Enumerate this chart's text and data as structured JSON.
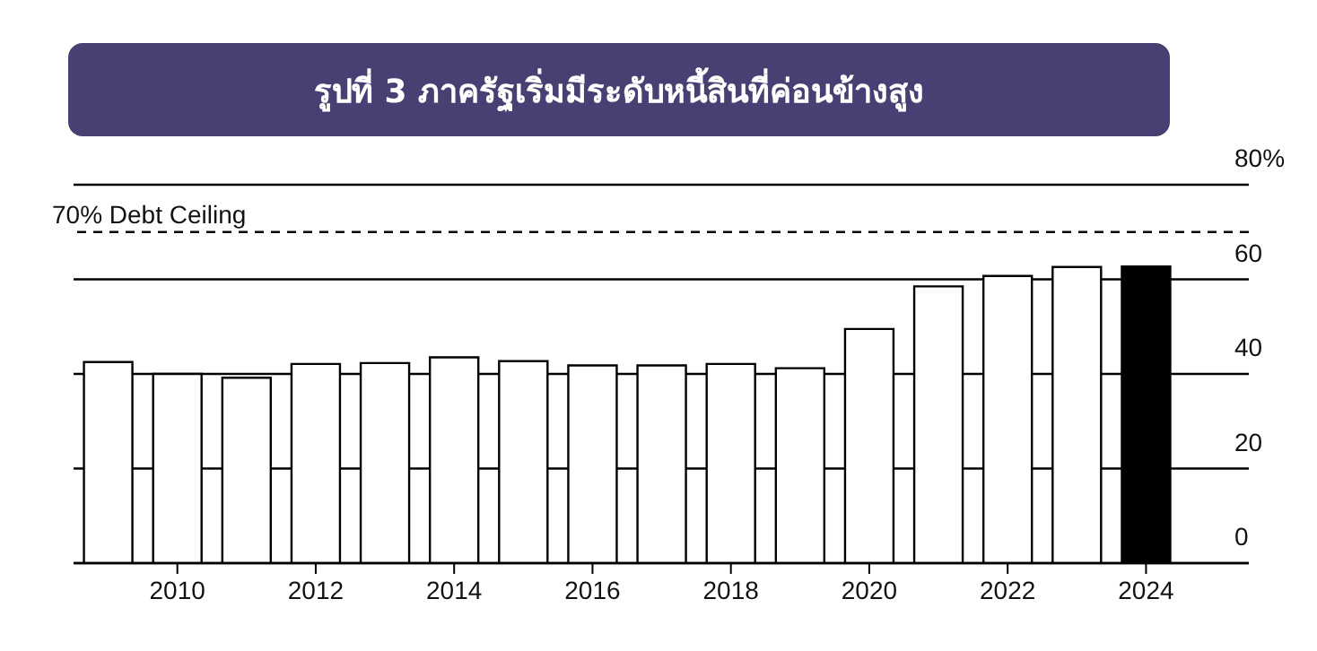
{
  "chart_data": {
    "type": "bar",
    "title": "รูปที่ 3 ภาครัฐเริ่มมีระดับหนี้สินที่ค่อนข้างสูง",
    "categories": [
      null,
      "2010",
      null,
      "2012",
      null,
      "2014",
      null,
      "2016",
      null,
      "2018",
      null,
      "2020",
      null,
      "2022",
      null,
      "2024"
    ],
    "values": [
      42.5,
      40,
      39.2,
      42.1,
      42.3,
      43.5,
      42.7,
      41.8,
      41.8,
      42.1,
      41.2,
      49.5,
      58.5,
      60.7,
      62.6,
      62.7
    ],
    "colors": [
      "#ffffff",
      "#ffffff",
      "#ffffff",
      "#ffffff",
      "#ffffff",
      "#ffffff",
      "#ffffff",
      "#ffffff",
      "#ffffff",
      "#ffffff",
      "#ffffff",
      "#ffffff",
      "#ffffff",
      "#ffffff",
      "#ffffff",
      "#000000"
    ],
    "ylim": [
      0,
      80
    ],
    "yticks": [
      0,
      20,
      40,
      60,
      {
        "value": 80,
        "label": "80%"
      }
    ],
    "grid": "y",
    "ref_lines": [
      {
        "axis": "y",
        "value": 70,
        "label": "70% Debt Ceiling",
        "line_style": "dashed",
        "color": "#000000"
      }
    ]
  }
}
